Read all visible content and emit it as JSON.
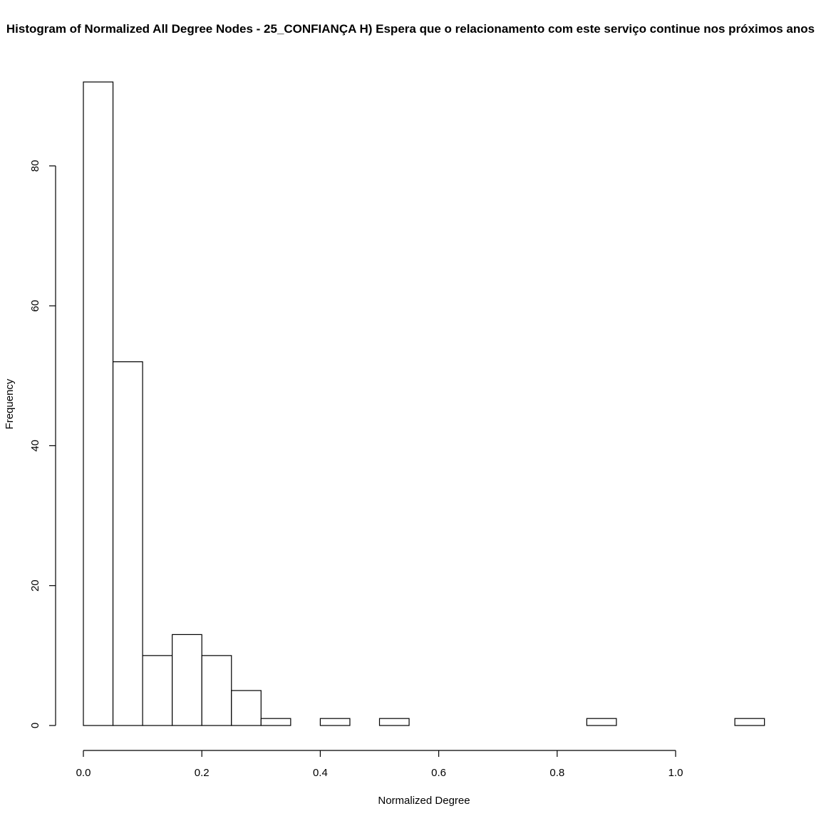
{
  "chart_data": {
    "type": "bar",
    "title": "Histogram of Normalized All Degree Nodes - 25_CONFIANÇA H) Espera que o relacionamento com este serviço continue nos próximos anos",
    "xlabel": "Normalized Degree",
    "ylabel": "Frequency",
    "bin_width": 0.05,
    "bins_start": [
      0.0,
      0.05,
      0.1,
      0.15,
      0.2,
      0.25,
      0.3,
      0.35,
      0.4,
      0.45,
      0.5,
      0.55,
      0.6,
      0.65,
      0.7,
      0.75,
      0.8,
      0.85,
      0.9,
      0.95,
      1.0,
      1.05,
      1.1
    ],
    "values": [
      92,
      52,
      10,
      13,
      10,
      5,
      1,
      0,
      1,
      0,
      1,
      0,
      0,
      0,
      0,
      0,
      0,
      1,
      0,
      0,
      0,
      0,
      1
    ],
    "xlim": [
      0.0,
      1.15
    ],
    "ylim": [
      0,
      92
    ],
    "x_ticks": [
      "0.0",
      "0.2",
      "0.4",
      "0.6",
      "0.8",
      "1.0"
    ],
    "y_ticks": [
      "0",
      "20",
      "40",
      "60",
      "80"
    ],
    "x_tick_values": [
      0.0,
      0.2,
      0.4,
      0.6,
      0.8,
      1.0
    ],
    "y_tick_values": [
      0,
      20,
      40,
      60,
      80
    ],
    "grid": false,
    "bar_fill": "#ffffff",
    "bar_stroke": "#000000"
  }
}
